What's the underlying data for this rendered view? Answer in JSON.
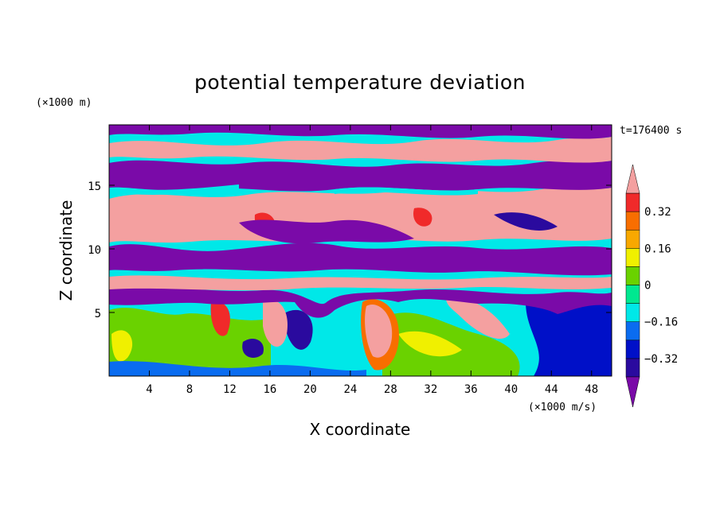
{
  "chart_data": {
    "type": "heatmap",
    "title": "potential temperature deviation",
    "time_label": "t=176400 s",
    "xlabel": "X coordinate",
    "ylabel": "Z coordinate",
    "x_unit": "(×1000 m/s)",
    "y_unit": "(×1000 m)",
    "xlim": [
      0,
      50
    ],
    "ylim": [
      0,
      19.75
    ],
    "x_ticks": [
      4,
      8,
      12,
      16,
      20,
      24,
      28,
      32,
      36,
      40,
      44,
      48
    ],
    "y_ticks": [
      5,
      10,
      15
    ],
    "colorbar": {
      "levels": [
        -0.48,
        -0.4,
        -0.32,
        -0.24,
        -0.16,
        -0.08,
        0,
        0.08,
        0.16,
        0.24,
        0.32,
        0.4
      ],
      "labels": [
        "0.32",
        "0.16",
        "0",
        "−0.16",
        "−0.32"
      ],
      "label_values": [
        0.32,
        0.16,
        0,
        -0.16,
        -0.32
      ],
      "colors": [
        "#7a0aa8",
        "#2a0a9e",
        "#0010c8",
        "#0a6cf0",
        "#00e8e8",
        "#00e890",
        "#6ad200",
        "#f0f000",
        "#f8a800",
        "#f86e00",
        "#f02a2a",
        "#f4a0a0"
      ],
      "extend": "both"
    }
  }
}
